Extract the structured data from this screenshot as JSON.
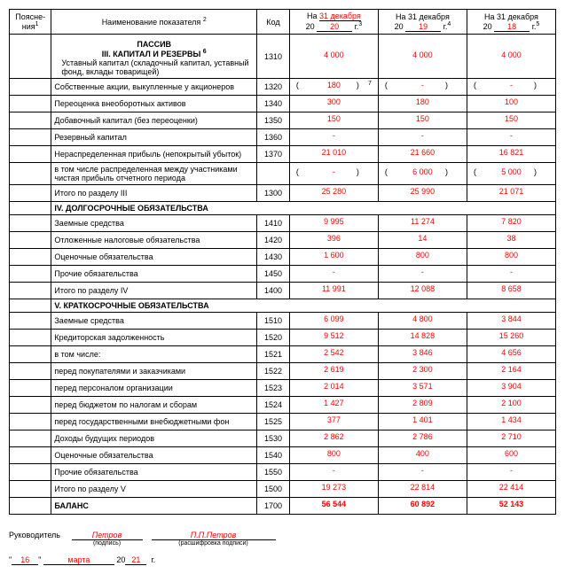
{
  "header": {
    "notes": "Поясне-\nния",
    "notes_sup": "1",
    "name": "Наименование показателя",
    "name_sup": "2",
    "code": "Код",
    "on_prefix": "На",
    "y20_prefix": "20",
    "g": "г.",
    "c1_date": "31 декабря",
    "c1_year": "20",
    "c1_sup": "3",
    "c2_date": "На 31 декабря",
    "c2_year": "19",
    "c2_sup": "4",
    "c3_date": "На 31 декабря",
    "c3_year": "18",
    "c3_sup": "5"
  },
  "titles": {
    "passive": "ПАССИВ",
    "s3": "III. КАПИТАЛ И РЕЗЕРВЫ",
    "s3_sup": "6",
    "s4": "IV. ДОЛГОСРОЧНЫЕ ОБЯЗАТЕЛЬСТВА",
    "s5": "V. КРАТКОСРОЧНЫЕ ОБЯЗАТЕЛЬСТВА"
  },
  "rows": [
    {
      "name": "Уставный капитал (складочный капитал, уставный фонд, вклады товарищей)",
      "code": "1310",
      "v": [
        "4 000",
        "4 000",
        "4 000"
      ]
    },
    {
      "name": "Собственные акции, выкупленные у акционеров",
      "code": "1320",
      "paren": true,
      "sup7": true,
      "v": [
        "180",
        "-",
        "-"
      ]
    },
    {
      "name": "Переоценка внеоборотных активов",
      "code": "1340",
      "v": [
        "300",
        "180",
        "100"
      ]
    },
    {
      "name": "Добавочный капитал (без переоценки)",
      "code": "1350",
      "v": [
        "150",
        "150",
        "150"
      ]
    },
    {
      "name": "Резервный капитал",
      "code": "1360",
      "v": [
        "-",
        "-",
        "-"
      ]
    },
    {
      "name": "Нераспределенная прибыль (непокрытый убыток)",
      "code": "1370",
      "v": [
        "21 010",
        "21 660",
        "16 821"
      ]
    },
    {
      "name": "в том числе распределенная между участниками чистая прибыль отчетного периода",
      "code": "",
      "paren": true,
      "v": [
        "-",
        "6 000",
        "5 000"
      ]
    },
    {
      "name": "Итого по разделу III",
      "code": "1300",
      "v": [
        "25 280",
        "25 990",
        "21 071"
      ]
    },
    {
      "section": "s4"
    },
    {
      "name": "Заемные средства",
      "code": "1410",
      "v": [
        "9 995",
        "11 274",
        "7 820"
      ]
    },
    {
      "name": "Отложенные налоговые обязательства",
      "code": "1420",
      "v": [
        "396",
        "14",
        "38"
      ]
    },
    {
      "name": "Оценочные обязательства",
      "code": "1430",
      "v": [
        "1 600",
        "800",
        "800"
      ]
    },
    {
      "name": "Прочие обязательства",
      "code": "1450",
      "v": [
        "-",
        "-",
        "-"
      ]
    },
    {
      "name": "Итого по разделу IV",
      "code": "1400",
      "v": [
        "11 991",
        "12 088",
        "8 658"
      ]
    },
    {
      "section": "s5"
    },
    {
      "name": "Заемные средства",
      "code": "1510",
      "v": [
        "6 099",
        "4 800",
        "3 844"
      ]
    },
    {
      "name": "Кредиторская задолженность",
      "code": "1520",
      "v": [
        "9 512",
        "14 828",
        "15 260"
      ]
    },
    {
      "name": "в том числе:",
      "code": "1521",
      "indent": true,
      "v": [
        "2 542",
        "3 846",
        "4 656"
      ]
    },
    {
      "name": "перед покупателями и заказчиками",
      "code": "1522",
      "indent": true,
      "v": [
        "2 619",
        "2 300",
        "2 164"
      ]
    },
    {
      "name": "перед персоналом организации",
      "code": "1523",
      "indent": true,
      "v": [
        "2 014",
        "3 571",
        "3 904"
      ]
    },
    {
      "name": "перед бюджетом по налогам и сборам",
      "code": "1524",
      "indent": true,
      "v": [
        "1 427",
        "2 809",
        "2 100"
      ]
    },
    {
      "name": "перед государственными внебюджетными фон",
      "code": "1525",
      "indent": true,
      "v": [
        "377",
        "1 401",
        "1 434"
      ]
    },
    {
      "name": "Доходы будущих периодов",
      "code": "1530",
      "v": [
        "2 862",
        "2 786",
        "2 710"
      ]
    },
    {
      "name": "Оценочные обязательства",
      "code": "1540",
      "v": [
        "800",
        "400",
        "600"
      ]
    },
    {
      "name": "Прочие обязательства",
      "code": "1550",
      "v": [
        "-",
        "-",
        "-"
      ]
    },
    {
      "name": "Итого по разделу V",
      "code": "1500",
      "v": [
        "19 273",
        "22 814",
        "22 414"
      ]
    },
    {
      "name": "БАЛАНС",
      "code": "1700",
      "bold": true,
      "v": [
        "56 544",
        "60 892",
        "52 143"
      ]
    }
  ],
  "sig": {
    "leader": "Руководитель",
    "sign": "Петров",
    "sign_sub": "(подпись)",
    "decode": "П.П.Петров",
    "decode_sub": "(расшифровка подписи)",
    "day": "16",
    "month": "марта",
    "y_prefix": "20",
    "year": "21",
    "g": "г."
  }
}
